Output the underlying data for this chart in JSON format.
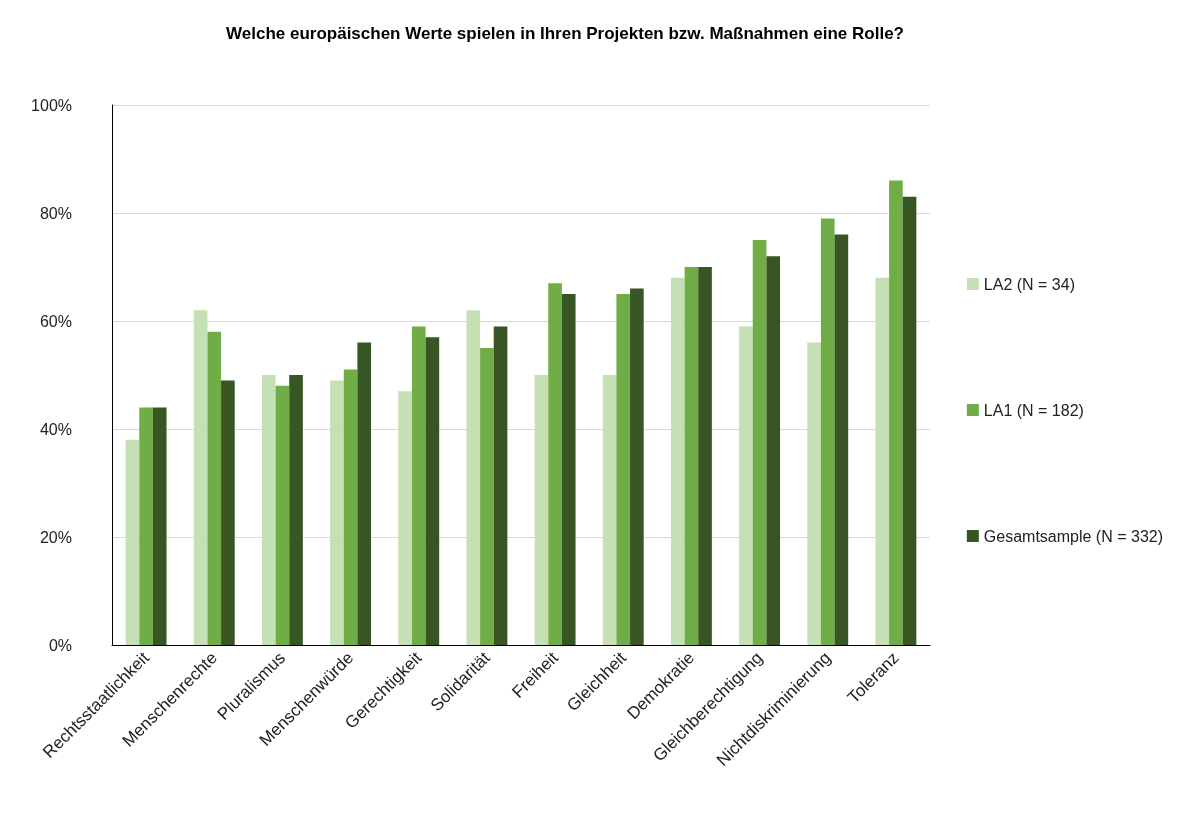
{
  "chart_data": {
    "type": "bar",
    "title": "Welche europäischen Werte spielen in Ihren Projekten bzw. Maßnahmen eine Rolle?",
    "categories": [
      "Rechtsstaatlichkeit",
      "Menschenrechte",
      "Pluralismus",
      "Menschenwürde",
      "Gerechtigkeit",
      "Solidarität",
      "Freiheit",
      "Gleichheit",
      "Demokratie",
      "Gleichberechtigung",
      "Nichtdiskriminierung",
      "Toleranz"
    ],
    "series": [
      {
        "name": "LA2 (N = 34)",
        "color": "#c5e0b4",
        "values": [
          38,
          62,
          50,
          49,
          47,
          62,
          50,
          50,
          68,
          59,
          56,
          68
        ]
      },
      {
        "name": "LA1 (N = 182)",
        "color": "#70ad47",
        "values": [
          44,
          58,
          48,
          51,
          59,
          55,
          67,
          65,
          70,
          75,
          79,
          86
        ]
      },
      {
        "name": "Gesamtsample (N = 332)",
        "color": "#375623",
        "values": [
          44,
          49,
          50,
          56,
          57,
          59,
          65,
          66,
          70,
          72,
          76,
          83
        ]
      }
    ],
    "ylim": [
      0,
      100
    ],
    "yticks": [
      {
        "value": 0,
        "label": "0%"
      },
      {
        "value": 20,
        "label": "20%"
      },
      {
        "value": 40,
        "label": "40%"
      },
      {
        "value": 60,
        "label": "60%"
      },
      {
        "value": 80,
        "label": "80%"
      },
      {
        "value": 100,
        "label": "100%"
      }
    ],
    "grid": "y",
    "legend": "right"
  }
}
